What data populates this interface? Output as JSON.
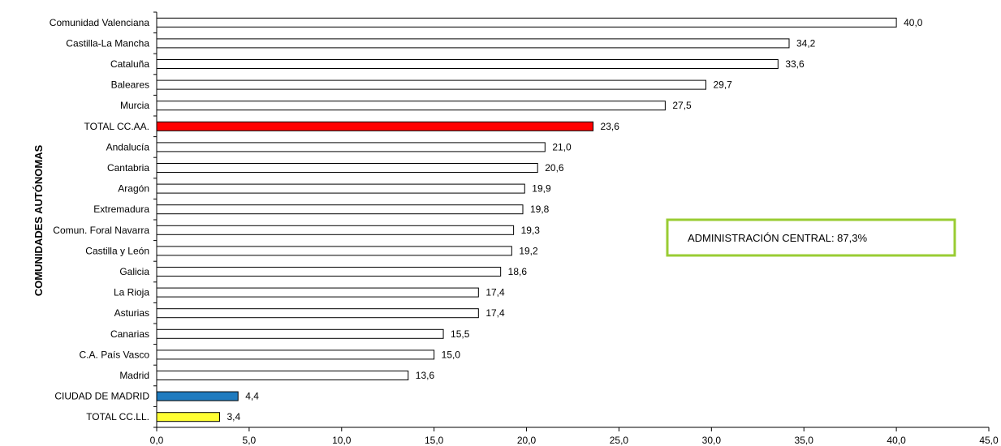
{
  "chart_data": {
    "type": "bar",
    "orientation": "horizontal",
    "ylabel": "COMUNIDADES  AUTÓNOMAS",
    "xlabel": "",
    "xlim": [
      0,
      45
    ],
    "xticks": [
      "0,0",
      "5,0",
      "10,0",
      "15,0",
      "20,0",
      "25,0",
      "30,0",
      "35,0",
      "40,0",
      "45,0"
    ],
    "grid": false,
    "categories": [
      "Comunidad Valenciana",
      "Castilla-La Mancha",
      "Cataluña",
      "Baleares",
      "Murcia",
      "TOTAL CC.AA.",
      "Andalucía",
      "Cantabria",
      "Aragón",
      "Extremadura",
      "Comun. Foral Navarra",
      "Castilla y León",
      "Galicia",
      "La Rioja",
      "Asturias",
      "Canarias",
      "C.A. País Vasco",
      "Madrid",
      "CIUDAD DE MADRID",
      "TOTAL CC.LL."
    ],
    "values": [
      40.0,
      34.2,
      33.6,
      29.7,
      27.5,
      23.6,
      21.0,
      20.6,
      19.9,
      19.8,
      19.3,
      19.2,
      18.6,
      17.4,
      17.4,
      15.5,
      15.0,
      13.6,
      4.4,
      3.4
    ],
    "value_labels": [
      "40,0",
      "34,2",
      "33,6",
      "29,7",
      "27,5",
      "23,6",
      "21,0",
      "20,6",
      "19,9",
      "19,8",
      "19,3",
      "19,2",
      "18,6",
      "17,4",
      "17,4",
      "15,5",
      "15,0",
      "13,6",
      "4,4",
      "3,4"
    ],
    "bar_colors": [
      "#ffffff",
      "#ffffff",
      "#ffffff",
      "#ffffff",
      "#ffffff",
      "#ff0000",
      "#ffffff",
      "#ffffff",
      "#ffffff",
      "#ffffff",
      "#ffffff",
      "#ffffff",
      "#ffffff",
      "#ffffff",
      "#ffffff",
      "#ffffff",
      "#ffffff",
      "#ffffff",
      "#1f7bbf",
      "#ffff33"
    ],
    "annotation": {
      "text": "ADMINISTRACIÓN CENTRAL:  87,3%",
      "border_color": "#99cc33"
    }
  }
}
